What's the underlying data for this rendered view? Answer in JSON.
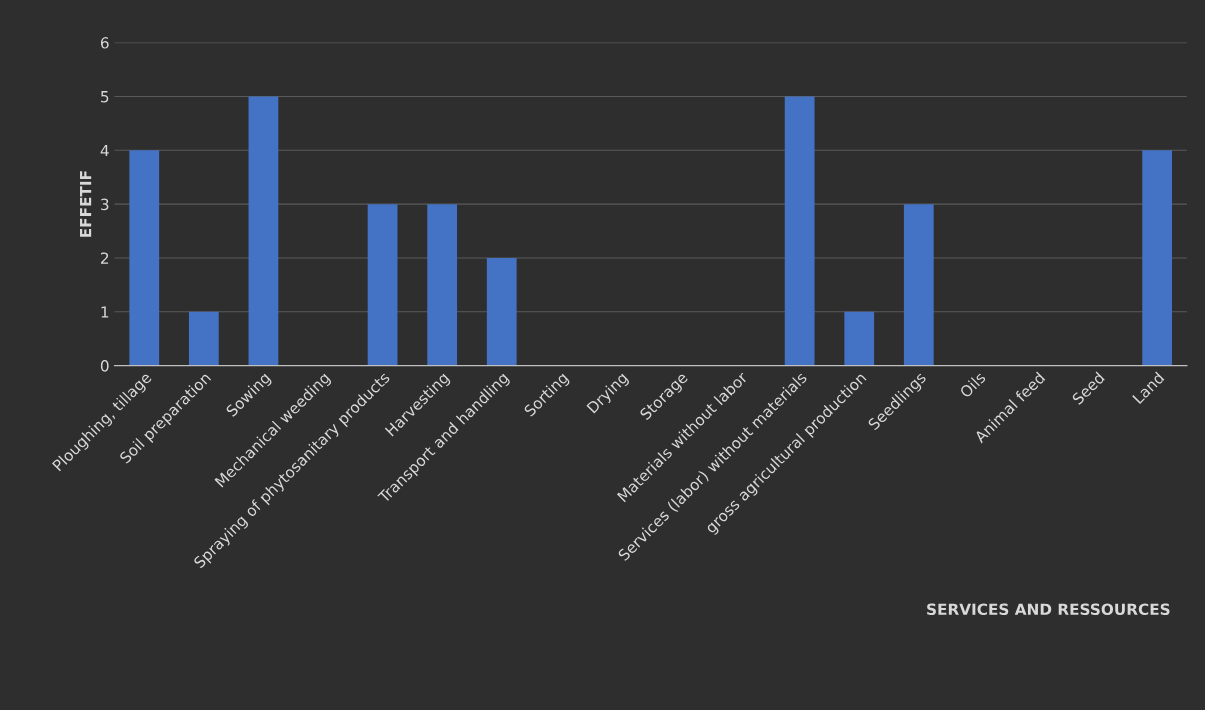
{
  "chart_data": {
    "type": "bar",
    "annotations": [
      "SERVICES AND RESSOURCES"
    ],
    "ylabel": "EFFETIF",
    "categories": [
      "Ploughing, tillage",
      "Soil preparation",
      "Sowing",
      "Mechanical weeding",
      "Spraying of phytosanitary products",
      "Harvesting",
      "Transport and handling",
      "Sorting",
      "Drying",
      "Storage",
      "Materials without labor",
      "Services (labor) without materials",
      "gross agricultural production",
      "Seedlings",
      "Oils",
      "Animal feed",
      "Seed",
      "Land"
    ],
    "values": [
      4,
      1,
      5,
      0,
      3,
      3,
      2,
      0,
      0,
      0,
      0,
      5,
      1,
      3,
      0,
      0,
      0,
      4
    ],
    "color": "#4472c4",
    "ylim": [
      0,
      6
    ],
    "yticks": [
      0,
      1,
      2,
      3,
      4,
      5,
      6
    ],
    "grid": "y",
    "legend": false
  }
}
